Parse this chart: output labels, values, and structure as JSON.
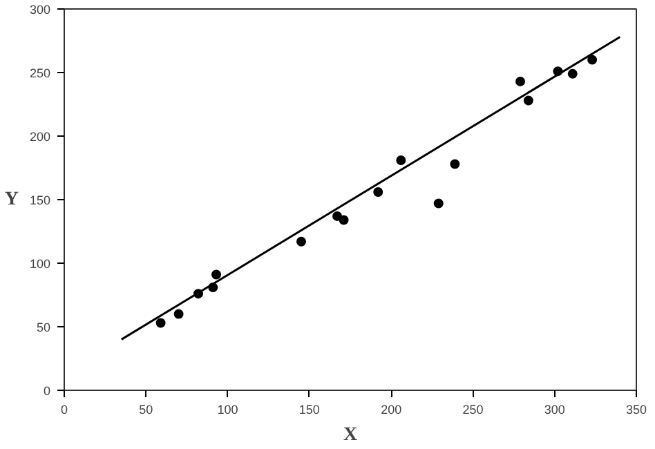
{
  "chart_data": {
    "type": "scatter",
    "xlabel": "X",
    "ylabel": "Y",
    "xlim": [
      0,
      350
    ],
    "ylim": [
      0,
      300
    ],
    "xticks": [
      0,
      50,
      100,
      150,
      200,
      250,
      300,
      350
    ],
    "yticks": [
      0,
      50,
      100,
      150,
      200,
      250,
      300
    ],
    "grid": false,
    "marker": "circle",
    "series": [
      {
        "color": "#000000",
        "x": [
          59,
          70,
          82,
          91,
          93,
          145,
          167,
          171,
          192,
          206,
          229,
          239,
          279,
          284,
          302,
          311,
          323
        ],
        "values": [
          53,
          60,
          76,
          81,
          91,
          117,
          137,
          134,
          156,
          181,
          147,
          178,
          243,
          228,
          251,
          249,
          260
        ]
      },
      {
        "type": "line",
        "color": "#000000",
        "x": [
          35,
          340
        ],
        "values": [
          40,
          278
        ],
        "marker": "none",
        "line_style": "solid"
      }
    ]
  }
}
